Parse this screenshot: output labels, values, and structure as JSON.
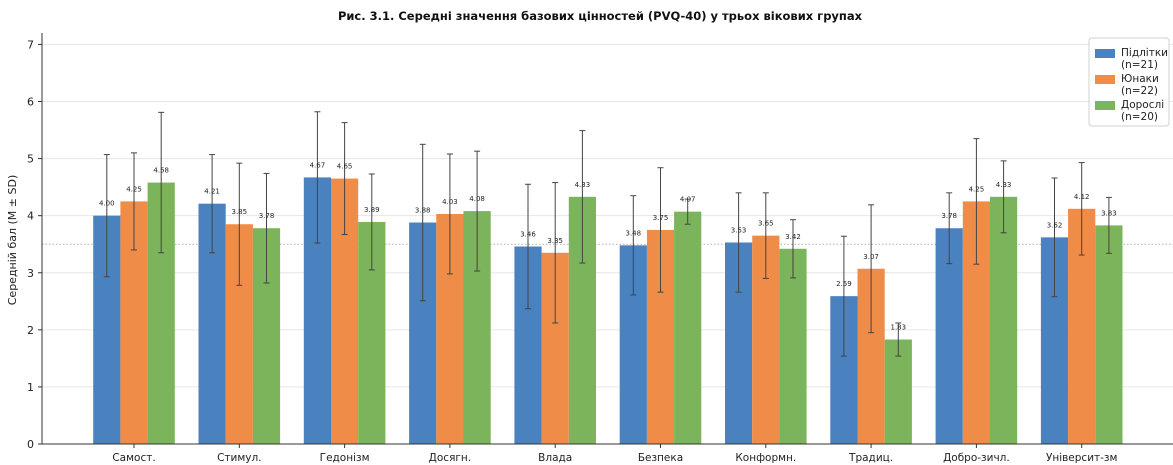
{
  "chart_data": {
    "type": "bar",
    "title": "Рис. 3.1. Середні значення базових цінностей (PVQ-40) у трьох вікових групах",
    "xlabel": "",
    "ylabel": "Середній бал (M ± SD)",
    "ylim": [
      0,
      7.2
    ],
    "yticks": [
      0,
      1,
      2,
      3,
      4,
      5,
      6,
      7
    ],
    "reference_line": 3.5,
    "grid": "horizontal",
    "legend_position": "top-right",
    "categories": [
      "Самост.",
      "Стимул.",
      "Гедонізм",
      "Досягн.",
      "Влада",
      "Безпека",
      "Конформн.",
      "Традиц.",
      "Добро-зичл.",
      "Університ-зм"
    ],
    "series": [
      {
        "name": "Підлітки\n(n=21)",
        "color": "#4a81bf",
        "values": [
          4.0,
          4.21,
          4.67,
          3.88,
          3.46,
          3.48,
          3.53,
          2.59,
          3.78,
          3.62
        ],
        "sd": [
          1.07,
          0.86,
          1.15,
          1.37,
          1.09,
          0.87,
          0.87,
          1.05,
          0.62,
          1.04
        ]
      },
      {
        "name": "Юнаки\n(n=22)",
        "color": "#ef8c47",
        "values": [
          4.25,
          3.85,
          4.65,
          4.03,
          3.35,
          3.75,
          3.65,
          3.07,
          4.25,
          4.12
        ],
        "sd": [
          0.85,
          1.07,
          0.98,
          1.05,
          1.23,
          1.09,
          0.75,
          1.12,
          1.1,
          0.81
        ]
      },
      {
        "name": "Дорослі\n(n=20)",
        "color": "#7bb45a",
        "values": [
          4.58,
          3.78,
          3.89,
          4.08,
          4.33,
          4.07,
          3.42,
          1.83,
          4.33,
          3.83
        ],
        "sd": [
          1.23,
          0.96,
          0.84,
          1.05,
          1.16,
          0.22,
          0.51,
          0.29,
          0.63,
          0.49
        ]
      }
    ],
    "value_labels": [
      [
        "4.00",
        "4.21",
        "4.67",
        "3.88",
        "3.46",
        "3.48",
        "3.53",
        "2.59",
        "3.78",
        "3.62"
      ],
      [
        "4.25",
        "3.85",
        "4.65",
        "4.03",
        "3.35",
        "3.75",
        "3.65",
        "3.07",
        "4.25",
        "4.12"
      ],
      [
        "4.58",
        "3.78",
        "3.89",
        "4.08",
        "4.33",
        "4.07",
        "3.42",
        "1.83",
        "4.33",
        "3.83"
      ]
    ]
  }
}
